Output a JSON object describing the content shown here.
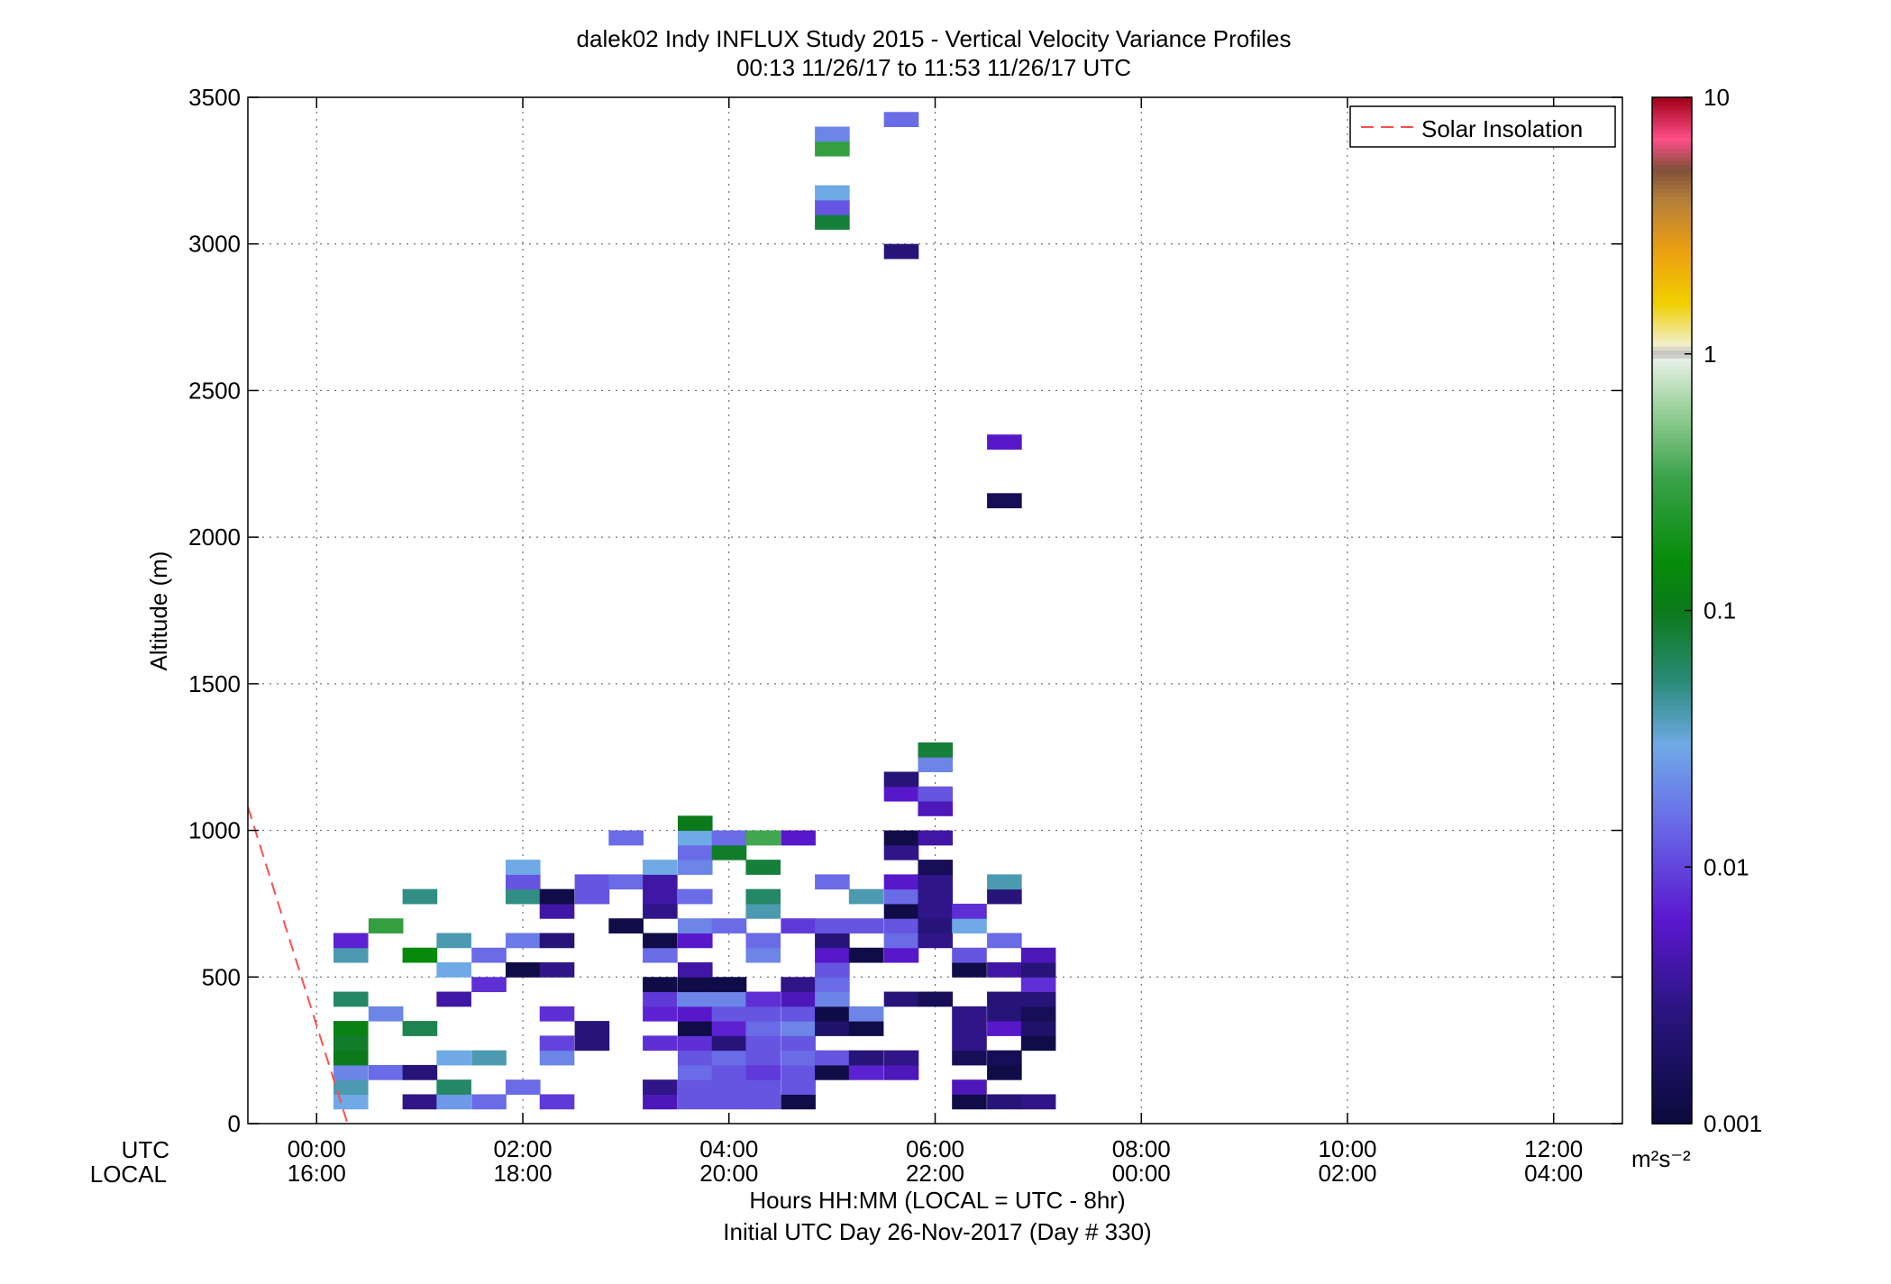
{
  "chart_data": {
    "type": "heatmap",
    "title": "dalek02 Indy INFLUX Study 2015 - Vertical Velocity Variance Profiles",
    "subtitle": "00:13 11/26/17 to 11:53 11/26/17  UTC",
    "ylabel": "Altitude (m)",
    "xlabel": "Hours HH:MM  (LOCAL = UTC - 8hr)",
    "xlabel2": "Initial UTC Day 26-Nov-2017 (Day # 330)",
    "row_label_utc": "UTC",
    "row_label_local": "LOCAL",
    "colorbar_unit": "m²s⁻²",
    "xlim": [
      -0.667,
      12.667
    ],
    "ylim": [
      0,
      3500
    ],
    "grid": true,
    "x_ticks": [
      {
        "hour": 0,
        "utc": "00:00",
        "local": "16:00"
      },
      {
        "hour": 2,
        "utc": "02:00",
        "local": "18:00"
      },
      {
        "hour": 4,
        "utc": "04:00",
        "local": "20:00"
      },
      {
        "hour": 6,
        "utc": "06:00",
        "local": "22:00"
      },
      {
        "hour": 8,
        "utc": "08:00",
        "local": "00:00"
      },
      {
        "hour": 10,
        "utc": "10:00",
        "local": "02:00"
      },
      {
        "hour": 12,
        "utc": "12:00",
        "local": "04:00"
      }
    ],
    "y_ticks": [
      {
        "value": 0,
        "label": "0"
      },
      {
        "value": 500,
        "label": "500"
      },
      {
        "value": 1000,
        "label": "1000"
      },
      {
        "value": 1500,
        "label": "1500"
      },
      {
        "value": 2000,
        "label": "2000"
      },
      {
        "value": 2500,
        "label": "2500"
      },
      {
        "value": 3000,
        "label": "3000"
      },
      {
        "value": 3500,
        "label": "3500"
      }
    ],
    "colorbar": {
      "scale": "log",
      "range": [
        0.001,
        10
      ],
      "ticks": [
        {
          "value": 10,
          "label": "10"
        },
        {
          "value": 1,
          "label": "1"
        },
        {
          "value": 0.1,
          "label": "0.1"
        },
        {
          "value": 0.01,
          "label": "0.01"
        },
        {
          "value": 0.001,
          "label": "0.001"
        }
      ]
    },
    "legend": {
      "position": "top-right",
      "entries": [
        {
          "name": "Solar Insolation",
          "color": "#ff4d4d",
          "style": "dashed"
        }
      ]
    },
    "solar_insolation": [
      {
        "hour": -0.667,
        "altitude": 1080
      },
      {
        "hour": 0.3,
        "altitude": 0
      }
    ],
    "bin_width_hours": 0.333,
    "bin_height_m": 50,
    "cells": [
      [
        0.33,
        75,
        0.03
      ],
      [
        0.33,
        125,
        0.04
      ],
      [
        0.33,
        175,
        0.02
      ],
      [
        0.33,
        225,
        0.1
      ],
      [
        0.33,
        275,
        0.09
      ],
      [
        0.33,
        325,
        0.12
      ],
      [
        0.33,
        425,
        0.06
      ],
      [
        0.33,
        575,
        0.04
      ],
      [
        0.33,
        625,
        0.007
      ],
      [
        0.67,
        175,
        0.015
      ],
      [
        0.67,
        375,
        0.02
      ],
      [
        0.67,
        675,
        0.3
      ],
      [
        1.0,
        75,
        0.003
      ],
      [
        1.0,
        175,
        0.0025
      ],
      [
        1.0,
        325,
        0.07
      ],
      [
        1.0,
        575,
        0.15
      ],
      [
        1.0,
        775,
        0.05
      ],
      [
        1.33,
        75,
        0.025
      ],
      [
        1.33,
        125,
        0.06
      ],
      [
        1.33,
        225,
        0.03
      ],
      [
        1.33,
        425,
        0.004
      ],
      [
        1.33,
        525,
        0.03
      ],
      [
        1.33,
        625,
        0.04
      ],
      [
        1.67,
        75,
        0.015
      ],
      [
        1.67,
        225,
        0.04
      ],
      [
        1.67,
        475,
        0.008
      ],
      [
        1.67,
        575,
        0.015
      ],
      [
        2.0,
        125,
        0.015
      ],
      [
        2.0,
        525,
        0.0012
      ],
      [
        2.0,
        625,
        0.018
      ],
      [
        2.0,
        775,
        0.05
      ],
      [
        2.0,
        825,
        0.012
      ],
      [
        2.0,
        875,
        0.03
      ],
      [
        2.33,
        75,
        0.009
      ],
      [
        2.33,
        225,
        0.02
      ],
      [
        2.33,
        275,
        0.01
      ],
      [
        2.33,
        375,
        0.008
      ],
      [
        2.33,
        525,
        0.003
      ],
      [
        2.33,
        625,
        0.0025
      ],
      [
        2.33,
        725,
        0.004
      ],
      [
        2.33,
        775,
        0.0012
      ],
      [
        2.67,
        275,
        0.0025
      ],
      [
        2.67,
        325,
        0.0025
      ],
      [
        2.67,
        775,
        0.012
      ],
      [
        2.67,
        825,
        0.012
      ],
      [
        3.0,
        675,
        0.0012
      ],
      [
        3.0,
        825,
        0.015
      ],
      [
        3.0,
        975,
        0.015
      ],
      [
        3.33,
        75,
        0.005
      ],
      [
        3.33,
        125,
        0.003
      ],
      [
        3.33,
        275,
        0.008
      ],
      [
        3.33,
        375,
        0.007
      ],
      [
        3.33,
        425,
        0.009
      ],
      [
        3.33,
        475,
        0.0012
      ],
      [
        3.33,
        575,
        0.015
      ],
      [
        3.33,
        625,
        0.0012
      ],
      [
        3.33,
        725,
        0.003
      ],
      [
        3.33,
        775,
        0.004
      ],
      [
        3.33,
        825,
        0.004
      ],
      [
        3.33,
        875,
        0.03
      ],
      [
        3.67,
        75,
        0.012
      ],
      [
        3.67,
        125,
        0.012
      ],
      [
        3.67,
        175,
        0.015
      ],
      [
        3.67,
        225,
        0.012
      ],
      [
        3.67,
        275,
        0.008
      ],
      [
        3.67,
        325,
        0.0012
      ],
      [
        3.67,
        375,
        0.006
      ],
      [
        3.67,
        425,
        0.02
      ],
      [
        3.67,
        475,
        0.0012
      ],
      [
        3.67,
        525,
        0.004
      ],
      [
        3.67,
        625,
        0.006
      ],
      [
        3.67,
        675,
        0.02
      ],
      [
        3.67,
        775,
        0.015
      ],
      [
        3.67,
        875,
        0.02
      ],
      [
        3.67,
        925,
        0.015
      ],
      [
        3.67,
        975,
        0.03
      ],
      [
        3.67,
        1025,
        0.1
      ],
      [
        4.0,
        75,
        0.012
      ],
      [
        4.0,
        125,
        0.012
      ],
      [
        4.0,
        175,
        0.012
      ],
      [
        4.0,
        225,
        0.015
      ],
      [
        4.0,
        275,
        0.0025
      ],
      [
        4.0,
        325,
        0.007
      ],
      [
        4.0,
        375,
        0.012
      ],
      [
        4.0,
        425,
        0.02
      ],
      [
        4.0,
        475,
        0.0012
      ],
      [
        4.0,
        675,
        0.015
      ],
      [
        4.0,
        925,
        0.09
      ],
      [
        4.0,
        975,
        0.015
      ],
      [
        4.33,
        75,
        0.012
      ],
      [
        4.33,
        125,
        0.012
      ],
      [
        4.33,
        175,
        0.009
      ],
      [
        4.33,
        225,
        0.012
      ],
      [
        4.33,
        275,
        0.012
      ],
      [
        4.33,
        325,
        0.015
      ],
      [
        4.33,
        375,
        0.012
      ],
      [
        4.33,
        425,
        0.008
      ],
      [
        4.33,
        575,
        0.02
      ],
      [
        4.33,
        625,
        0.015
      ],
      [
        4.33,
        725,
        0.04
      ],
      [
        4.33,
        775,
        0.06
      ],
      [
        4.33,
        875,
        0.08
      ],
      [
        4.33,
        975,
        0.35
      ],
      [
        4.67,
        75,
        0.0012
      ],
      [
        4.67,
        125,
        0.012
      ],
      [
        4.67,
        175,
        0.012
      ],
      [
        4.67,
        225,
        0.015
      ],
      [
        4.67,
        275,
        0.012
      ],
      [
        4.67,
        325,
        0.02
      ],
      [
        4.67,
        375,
        0.012
      ],
      [
        4.67,
        425,
        0.005
      ],
      [
        4.67,
        475,
        0.003
      ],
      [
        4.67,
        675,
        0.009
      ],
      [
        4.67,
        975,
        0.006
      ],
      [
        5.0,
        175,
        0.0012
      ],
      [
        5.0,
        225,
        0.012
      ],
      [
        5.0,
        325,
        0.002
      ],
      [
        5.0,
        375,
        0.0012
      ],
      [
        5.0,
        425,
        0.02
      ],
      [
        5.0,
        475,
        0.015
      ],
      [
        5.0,
        525,
        0.012
      ],
      [
        5.0,
        575,
        0.006
      ],
      [
        5.0,
        625,
        0.0025
      ],
      [
        5.0,
        675,
        0.012
      ],
      [
        5.0,
        825,
        0.015
      ],
      [
        5.0,
        3075,
        0.08
      ],
      [
        5.0,
        3125,
        0.012
      ],
      [
        5.0,
        3175,
        0.03
      ],
      [
        5.0,
        3325,
        0.3
      ],
      [
        5.0,
        3375,
        0.02
      ],
      [
        5.33,
        175,
        0.007
      ],
      [
        5.33,
        225,
        0.0025
      ],
      [
        5.33,
        325,
        0.0012
      ],
      [
        5.33,
        375,
        0.02
      ],
      [
        5.33,
        575,
        0.0012
      ],
      [
        5.33,
        675,
        0.012
      ],
      [
        5.33,
        775,
        0.04
      ],
      [
        5.67,
        175,
        0.005
      ],
      [
        5.67,
        225,
        0.003
      ],
      [
        5.67,
        425,
        0.0025
      ],
      [
        5.67,
        575,
        0.006
      ],
      [
        5.67,
        625,
        0.015
      ],
      [
        5.67,
        675,
        0.012
      ],
      [
        5.67,
        725,
        0.0012
      ],
      [
        5.67,
        775,
        0.015
      ],
      [
        5.67,
        825,
        0.006
      ],
      [
        5.67,
        925,
        0.003
      ],
      [
        5.67,
        975,
        0.0012
      ],
      [
        5.67,
        1125,
        0.006
      ],
      [
        5.67,
        1175,
        0.0025
      ],
      [
        5.67,
        2975,
        0.0025
      ],
      [
        5.67,
        3425,
        0.015
      ],
      [
        6.0,
        425,
        0.0015
      ],
      [
        6.0,
        625,
        0.003
      ],
      [
        6.0,
        675,
        0.0025
      ],
      [
        6.0,
        725,
        0.003
      ],
      [
        6.0,
        775,
        0.003
      ],
      [
        6.0,
        825,
        0.003
      ],
      [
        6.0,
        875,
        0.0015
      ],
      [
        6.0,
        975,
        0.004
      ],
      [
        6.0,
        1075,
        0.005
      ],
      [
        6.0,
        1125,
        0.012
      ],
      [
        6.0,
        1225,
        0.02
      ],
      [
        6.0,
        1275,
        0.08
      ],
      [
        6.33,
        75,
        0.0012
      ],
      [
        6.33,
        125,
        0.005
      ],
      [
        6.33,
        225,
        0.0015
      ],
      [
        6.33,
        275,
        0.003
      ],
      [
        6.33,
        325,
        0.003
      ],
      [
        6.33,
        375,
        0.003
      ],
      [
        6.33,
        525,
        0.0012
      ],
      [
        6.33,
        575,
        0.012
      ],
      [
        6.33,
        675,
        0.03
      ],
      [
        6.33,
        725,
        0.008
      ],
      [
        6.67,
        75,
        0.0025
      ],
      [
        6.67,
        175,
        0.0012
      ],
      [
        6.67,
        225,
        0.0015
      ],
      [
        6.67,
        325,
        0.006
      ],
      [
        6.67,
        375,
        0.0025
      ],
      [
        6.67,
        425,
        0.0025
      ],
      [
        6.67,
        525,
        0.004
      ],
      [
        6.67,
        625,
        0.015
      ],
      [
        6.67,
        775,
        0.0025
      ],
      [
        6.67,
        825,
        0.04
      ],
      [
        6.67,
        2125,
        0.0015
      ],
      [
        6.67,
        2325,
        0.006
      ],
      [
        7.0,
        75,
        0.003
      ],
      [
        7.0,
        275,
        0.0012
      ],
      [
        7.0,
        325,
        0.002
      ],
      [
        7.0,
        375,
        0.0015
      ],
      [
        7.0,
        425,
        0.0025
      ],
      [
        7.0,
        475,
        0.008
      ],
      [
        7.0,
        525,
        0.0025
      ],
      [
        7.0,
        575,
        0.005
      ]
    ],
    "palette": [
      {
        "t": 0.0,
        "color": "#0a0a3c"
      },
      {
        "t": 0.11,
        "color": "#2a1580"
      },
      {
        "t": 0.2,
        "color": "#5a18cf"
      },
      {
        "t": 0.3,
        "color": "#6a70e8"
      },
      {
        "t": 0.37,
        "color": "#6faae6"
      },
      {
        "t": 0.43,
        "color": "#2b8b7a"
      },
      {
        "t": 0.5,
        "color": "#0b7a1a"
      },
      {
        "t": 0.55,
        "color": "#068c0a"
      },
      {
        "t": 0.63,
        "color": "#3aa24a"
      },
      {
        "t": 0.7,
        "color": "#9fd39f"
      },
      {
        "t": 0.745,
        "color": "#e6efe6"
      },
      {
        "t": 0.75,
        "color": "#bdbdbd"
      },
      {
        "t": 0.76,
        "color": "#f2efc8"
      },
      {
        "t": 0.8,
        "color": "#f0d000"
      },
      {
        "t": 0.85,
        "color": "#eda010"
      },
      {
        "t": 0.9,
        "color": "#b6803a"
      },
      {
        "t": 0.93,
        "color": "#80503a"
      },
      {
        "t": 0.96,
        "color": "#ff4f8a"
      },
      {
        "t": 1.0,
        "color": "#a00018"
      }
    ]
  }
}
